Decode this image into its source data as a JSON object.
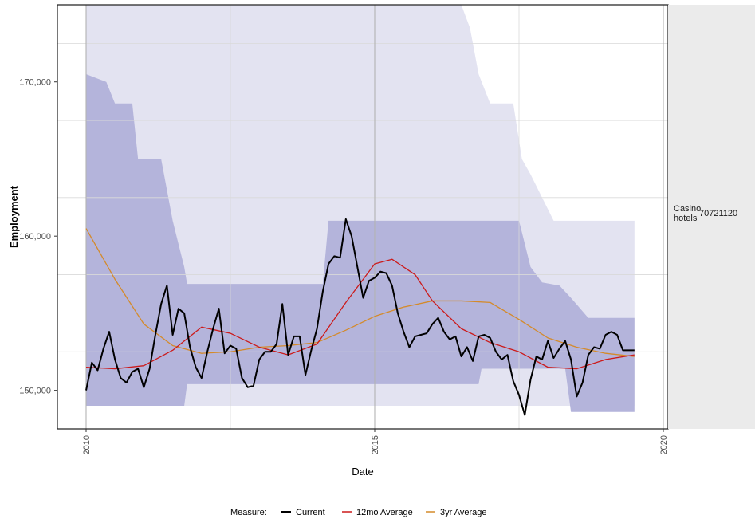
{
  "chart_data": {
    "type": "line",
    "xlabel": "Date",
    "ylabel": "Employment",
    "xlim": [
      2010,
      2020
    ],
    "ylim": [
      147500,
      175000
    ],
    "x_ticks": [
      2010,
      2015,
      2020
    ],
    "y_ticks": [
      150000,
      160000,
      170000
    ],
    "x_tick_labels": [
      "2010",
      "2015",
      "2020"
    ],
    "y_tick_labels": [
      "150,000",
      "160,000",
      "170,000"
    ],
    "grid": true,
    "panel_strip": {
      "label_line1": "Casino",
      "label_line2": "hotels",
      "code": "70721120"
    },
    "legend": {
      "title": "Measure:",
      "position": "bottom",
      "entries": [
        {
          "label": "Current",
          "color": "#000000"
        },
        {
          "label": "12mo Average",
          "color": "#cc1a1a"
        },
        {
          "label": "3yr Average",
          "color": "#d48a2a"
        }
      ]
    },
    "bands": [
      {
        "color": "#e3e3f1",
        "upper": [
          [
            2010,
            175000
          ],
          [
            2016.5,
            175000
          ],
          [
            2016.65,
            173500
          ],
          [
            2016.8,
            170500
          ],
          [
            2017.0,
            168600
          ],
          [
            2017.4,
            168600
          ],
          [
            2017.55,
            165000
          ],
          [
            2017.7,
            164000
          ],
          [
            2017.9,
            162500
          ],
          [
            2018.1,
            161000
          ],
          [
            2019.5,
            161000
          ]
        ],
        "lower": [
          [
            2010,
            149000
          ],
          [
            2016.5,
            149000
          ],
          [
            2019.5,
            149000
          ]
        ]
      },
      {
        "color": "#b4b4db",
        "upper": [
          [
            2010,
            170500
          ],
          [
            2010.35,
            170000
          ],
          [
            2010.5,
            168600
          ],
          [
            2010.8,
            168600
          ],
          [
            2010.9,
            165000
          ],
          [
            2011.3,
            165000
          ],
          [
            2011.5,
            161000
          ],
          [
            2011.7,
            158000
          ],
          [
            2011.75,
            156900
          ],
          [
            2014.1,
            156900
          ],
          [
            2014.2,
            161000
          ],
          [
            2017.5,
            161000
          ],
          [
            2017.7,
            158000
          ],
          [
            2017.9,
            157000
          ],
          [
            2018.2,
            156800
          ],
          [
            2018.4,
            156000
          ],
          [
            2018.7,
            154700
          ],
          [
            2019.5,
            154700
          ]
        ],
        "lower": [
          [
            2010,
            149000
          ],
          [
            2011.7,
            149000
          ],
          [
            2011.75,
            150400
          ],
          [
            2016.8,
            150400
          ],
          [
            2016.85,
            151400
          ],
          [
            2018.3,
            151400
          ],
          [
            2018.4,
            148600
          ],
          [
            2019.5,
            148600
          ]
        ]
      }
    ],
    "series": [
      {
        "name": "Current",
        "color": "#000000",
        "x": [
          2010.0,
          2010.1,
          2010.2,
          2010.3,
          2010.4,
          2010.5,
          2010.6,
          2010.7,
          2010.8,
          2010.9,
          2011.0,
          2011.1,
          2011.2,
          2011.3,
          2011.4,
          2011.5,
          2011.6,
          2011.7,
          2011.8,
          2011.9,
          2012.0,
          2012.1,
          2012.2,
          2012.3,
          2012.4,
          2012.5,
          2012.6,
          2012.7,
          2012.8,
          2012.9,
          2013.0,
          2013.1,
          2013.2,
          2013.3,
          2013.4,
          2013.5,
          2013.6,
          2013.7,
          2013.8,
          2013.9,
          2014.0,
          2014.1,
          2014.2,
          2014.3,
          2014.4,
          2014.5,
          2014.6,
          2014.7,
          2014.8,
          2014.9,
          2015.0,
          2015.1,
          2015.2,
          2015.3,
          2015.4,
          2015.5,
          2015.6,
          2015.7,
          2015.8,
          2015.9,
          2016.0,
          2016.1,
          2016.2,
          2016.3,
          2016.4,
          2016.5,
          2016.6,
          2016.7,
          2016.8,
          2016.9,
          2017.0,
          2017.1,
          2017.2,
          2017.3,
          2017.4,
          2017.5,
          2017.6,
          2017.7,
          2017.8,
          2017.9,
          2018.0,
          2018.1,
          2018.2,
          2018.3,
          2018.4,
          2018.5,
          2018.6,
          2018.7,
          2018.8,
          2018.9,
          2019.0,
          2019.1,
          2019.2,
          2019.3,
          2019.4,
          2019.5
        ],
        "values": [
          150000,
          151800,
          151300,
          152700,
          153800,
          152000,
          150800,
          150500,
          151200,
          151400,
          150200,
          151400,
          153600,
          155600,
          156800,
          153600,
          155300,
          155000,
          152800,
          151500,
          150800,
          152500,
          154000,
          155300,
          152400,
          152900,
          152700,
          150800,
          150200,
          150300,
          152000,
          152500,
          152500,
          153000,
          155600,
          152300,
          153500,
          153500,
          151000,
          152600,
          154000,
          156400,
          158200,
          158700,
          158600,
          161100,
          160000,
          158000,
          156000,
          157100,
          157300,
          157700,
          157600,
          156800,
          155000,
          153800,
          152800,
          153500,
          153600,
          153700,
          154300,
          154700,
          153800,
          153300,
          153500,
          152200,
          152800,
          151900,
          153500,
          153600,
          153400,
          152500,
          152000,
          152300,
          150600,
          149700,
          148400,
          150700,
          152200,
          152000,
          153200,
          152100,
          152700,
          153200,
          152000,
          149600,
          150500,
          152300,
          152800,
          152700,
          153600,
          153800,
          153600,
          152600,
          152600,
          152600
        ],
        "x_end_note": "series ends at 2019.5"
      },
      {
        "name": "12mo Average",
        "color": "#cc1a1a",
        "x": [
          2010.0,
          2010.5,
          2011.0,
          2011.5,
          2012.0,
          2012.5,
          2013.0,
          2013.5,
          2014.0,
          2014.5,
          2015.0,
          2015.3,
          2015.7,
          2016.0,
          2016.5,
          2017.0,
          2017.5,
          2018.0,
          2018.5,
          2019.0,
          2019.5
        ],
        "values": [
          151500,
          151400,
          151600,
          152600,
          154100,
          153700,
          152800,
          152300,
          153000,
          155700,
          158200,
          158500,
          157500,
          155800,
          154000,
          153100,
          152500,
          151500,
          151400,
          152000,
          152300
        ]
      },
      {
        "name": "3yr Average",
        "color": "#d48a2a",
        "x": [
          2010.0,
          2010.5,
          2011.0,
          2011.5,
          2012.0,
          2012.5,
          2013.0,
          2013.5,
          2014.0,
          2014.5,
          2015.0,
          2015.5,
          2016.0,
          2016.5,
          2017.0,
          2017.5,
          2018.0,
          2018.5,
          2019.0,
          2019.5
        ],
        "values": [
          160500,
          157200,
          154300,
          152900,
          152400,
          152500,
          152800,
          152900,
          153100,
          153900,
          154800,
          155400,
          155800,
          155800,
          155700,
          154600,
          153400,
          152800,
          152400,
          152200
        ]
      }
    ]
  }
}
